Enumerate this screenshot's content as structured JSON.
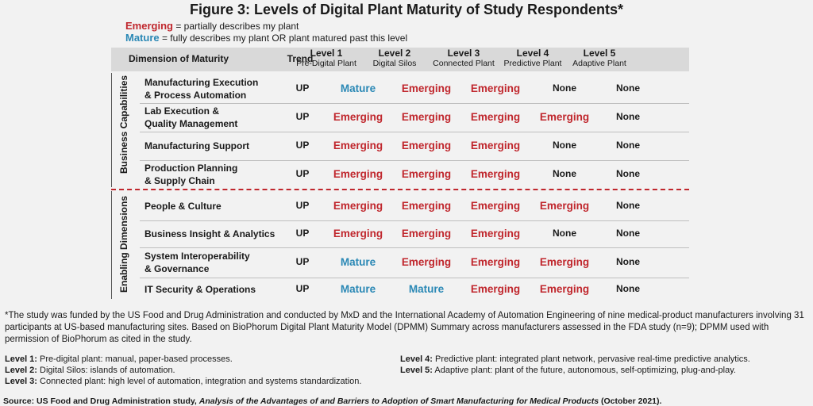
{
  "title": "Figure 3: Levels of Digital Plant Maturity of Study Respondents*",
  "legend": {
    "emerging_word": "Emerging",
    "emerging_desc": "= partially describes my plant",
    "mature_word": "Mature",
    "mature_desc": "= fully describes my plant OR plant matured past this level"
  },
  "header": {
    "dimension": "Dimension of Maturity",
    "trend": "Trend",
    "levels": [
      {
        "name": "Level 1",
        "sub": "Pre-Digital Plant"
      },
      {
        "name": "Level 2",
        "sub": "Digital Silos"
      },
      {
        "name": "Level 3",
        "sub": "Connected Plant"
      },
      {
        "name": "Level 4",
        "sub": "Predictive Plant"
      },
      {
        "name": "Level 5",
        "sub": "Adaptive Plant"
      }
    ]
  },
  "groups": {
    "business": "Business Capabilities",
    "enabling": "Enabling Dimensions"
  },
  "rows": [
    {
      "line1": "Manufacturing Execution",
      "line2": "& Process Automation",
      "trend": "UP",
      "values": [
        "Mature",
        "Emerging",
        "Emerging",
        "None",
        "None"
      ]
    },
    {
      "line1": "Lab Execution &",
      "line2": "Quality Management",
      "trend": "UP",
      "values": [
        "Emerging",
        "Emerging",
        "Emerging",
        "Emerging",
        "None"
      ]
    },
    {
      "line1": "Manufacturing Support",
      "line2": "",
      "trend": "UP",
      "values": [
        "Emerging",
        "Emerging",
        "Emerging",
        "None",
        "None"
      ]
    },
    {
      "line1": "Production Planning",
      "line2": "& Supply Chain",
      "trend": "UP",
      "values": [
        "Emerging",
        "Emerging",
        "Emerging",
        "None",
        "None"
      ]
    },
    {
      "line1": "People & Culture",
      "line2": "",
      "trend": "UP",
      "values": [
        "Emerging",
        "Emerging",
        "Emerging",
        "Emerging",
        "None"
      ]
    },
    {
      "line1": "Business Insight & Analytics",
      "line2": "",
      "trend": "UP",
      "values": [
        "Emerging",
        "Emerging",
        "Emerging",
        "None",
        "None"
      ]
    },
    {
      "line1": "System Interoperability",
      "line2": "& Governance",
      "trend": "UP",
      "values": [
        "Mature",
        "Emerging",
        "Emerging",
        "Emerging",
        "None"
      ]
    },
    {
      "line1": "IT Security & Operations",
      "line2": "",
      "trend": "UP",
      "values": [
        "Mature",
        "Mature",
        "Emerging",
        "Emerging",
        "None"
      ]
    }
  ],
  "footnote": "*The study was funded by the US Food and Drug Administration and conducted by MxD and the International Academy of Automation Engineering of nine medical-product manufacturers involving 31 participants at US-based manufacturing sites. Based on BioPhorum Digital Plant Maturity Model (DPMM) Summary across manufacturers assessed in the FDA study (n=9); DPMM used with permission of BioPhorum as cited in the study.",
  "level_defs": [
    {
      "label": "Level 1:",
      "text": "Pre-digital plant: manual, paper-based processes."
    },
    {
      "label": "Level 2:",
      "text": "Digital Silos: islands of automation."
    },
    {
      "label": "Level 3:",
      "text": "Connected plant: high level of automation, integration and systems standardization."
    },
    {
      "label": "Level 4:",
      "text": "Predictive plant: integrated plant network, pervasive real-time predictive analytics."
    },
    {
      "label": "Level 5:",
      "text": "Adaptive plant: plant of the future, autonomous, self-optimizing, plug-and-play."
    }
  ],
  "source": {
    "prefix": "Source: US Food and Drug Administration study,",
    "title": "Analysis of the Advantages of and Barriers to Adoption of Smart Manufacturing for Medical Products",
    "suffix": "(October 2021)."
  },
  "colors": {
    "emerging": "#c0272d",
    "mature": "#2a88b5",
    "header_bg": "#d9d9d9",
    "page_bg": "#f2f2f2"
  }
}
